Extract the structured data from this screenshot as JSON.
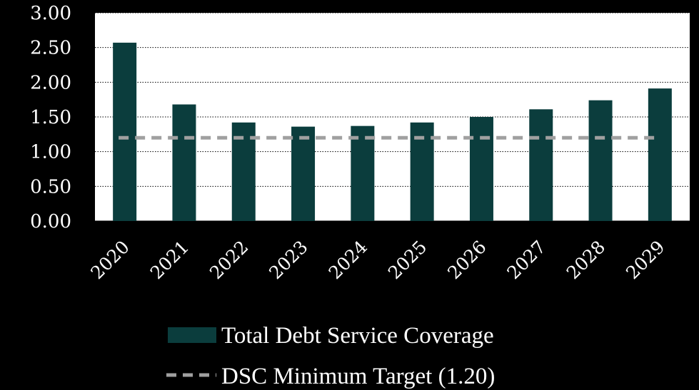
{
  "chart_data": {
    "type": "bar",
    "categories": [
      "2020",
      "2021",
      "2022",
      "2023",
      "2024",
      "2025",
      "2026",
      "2027",
      "2028",
      "2029"
    ],
    "series": [
      {
        "name": "Total Debt Service Coverage",
        "color": "#0b3d3d",
        "values": [
          2.57,
          1.68,
          1.42,
          1.36,
          1.37,
          1.42,
          1.5,
          1.61,
          1.74,
          1.91
        ]
      }
    ],
    "reference_line": {
      "name": "DSC Minimum Target (1.20)",
      "value": 1.2,
      "color": "#a0a0a0",
      "style": "dashed"
    },
    "ylim": [
      0,
      3.0
    ],
    "yticks": [
      "0.00",
      "0.50",
      "1.00",
      "1.50",
      "2.00",
      "2.50",
      "3.00"
    ],
    "grid": "horizontal dotted",
    "legend": "bottom-center",
    "background": "#000000",
    "plot_background": "#ffffff"
  }
}
